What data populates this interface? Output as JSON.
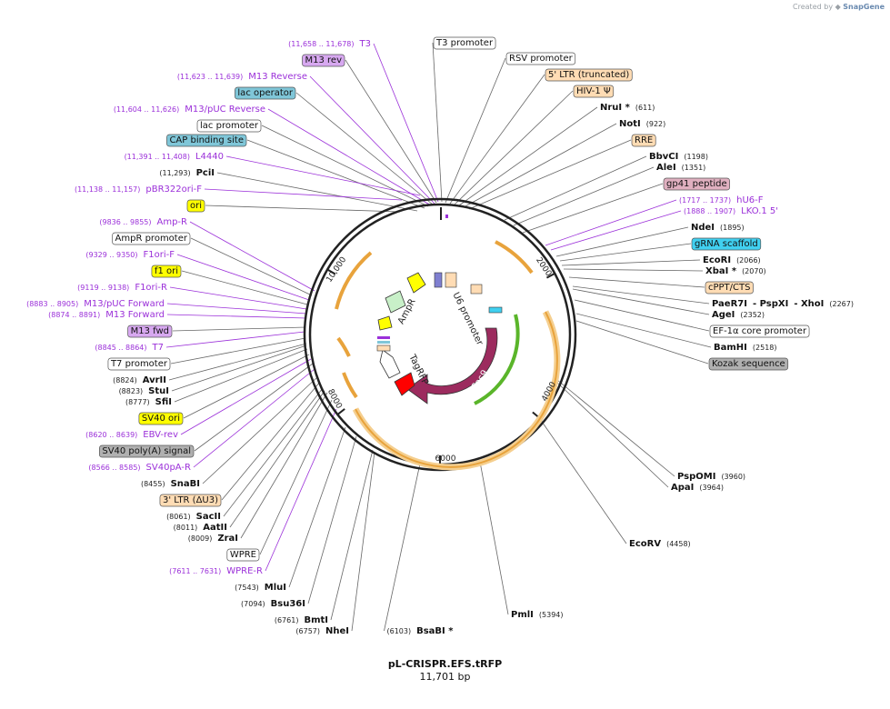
{
  "credit": {
    "prefix": "Created by",
    "brand": "SnapGene"
  },
  "plasmid": {
    "name": "pL-CRISPR.EFS.tRFP",
    "size_label": "11,701 bp"
  },
  "ticks": [
    "10,000",
    "2000",
    "4000",
    "6000",
    "8000"
  ],
  "colors": {
    "primer": "#9b30d9",
    "feature_box_default": "#ffffff",
    "cas9": "#9c2b5e",
    "tagrfp": "#ff0000",
    "ampr": "#ffff00",
    "ori": "#ffff00",
    "ltr": "#ffdcb4",
    "orange_arc": "#e8a33c",
    "green_arc": "#5ab52a"
  },
  "inner_labels": [
    "AmpR",
    "U6 promoter",
    "TagRFP",
    "Cas9"
  ],
  "labels": [
    {
      "kind": "primer",
      "range": "(11,658 .. 11,678)",
      "name": "T3"
    },
    {
      "kind": "box",
      "name": "M13 rev",
      "color": "#d7a8f0"
    },
    {
      "kind": "primer",
      "range": "(11,623 .. 11,639)",
      "name": "M13 Reverse"
    },
    {
      "kind": "box",
      "name": "lac operator",
      "color": "#7fc6d8"
    },
    {
      "kind": "primer",
      "range": "(11,604 .. 11,626)",
      "name": "M13/pUC Reverse"
    },
    {
      "kind": "box",
      "name": "lac promoter",
      "color": "#ffffff"
    },
    {
      "kind": "box",
      "name": "CAP binding site",
      "color": "#7fc6d8"
    },
    {
      "kind": "primer",
      "range": "(11,391 .. 11,408)",
      "name": "L4440"
    },
    {
      "kind": "site",
      "pos": "(11,293)",
      "name": "PciI"
    },
    {
      "kind": "primer",
      "range": "(11,138 .. 11,157)",
      "name": "pBR322ori-F"
    },
    {
      "kind": "box",
      "name": "ori",
      "color": "#ffff00"
    },
    {
      "kind": "primer",
      "range": "(9836 .. 9855)",
      "name": "Amp-R"
    },
    {
      "kind": "box",
      "name": "AmpR promoter",
      "color": "#ffffff"
    },
    {
      "kind": "primer",
      "range": "(9329 .. 9350)",
      "name": "F1ori-F"
    },
    {
      "kind": "box",
      "name": "f1 ori",
      "color": "#ffff00"
    },
    {
      "kind": "primer",
      "range": "(9119 .. 9138)",
      "name": "F1ori-R"
    },
    {
      "kind": "primer",
      "range": "(8883 .. 8905)",
      "name": "M13/pUC Forward"
    },
    {
      "kind": "primer",
      "range": "(8874 .. 8891)",
      "name": "M13 Forward"
    },
    {
      "kind": "box",
      "name": "M13 fwd",
      "color": "#d7a8f0"
    },
    {
      "kind": "primer",
      "range": "(8845 .. 8864)",
      "name": "T7"
    },
    {
      "kind": "box",
      "name": "T7 promoter",
      "color": "#ffffff"
    },
    {
      "kind": "site",
      "pos": "(8824)",
      "name": "AvrII"
    },
    {
      "kind": "site",
      "pos": "(8823)",
      "name": "StuI"
    },
    {
      "kind": "site",
      "pos": "(8777)",
      "name": "SfiI"
    },
    {
      "kind": "box",
      "name": "SV40 ori",
      "color": "#ffff00"
    },
    {
      "kind": "primer",
      "range": "(8620 .. 8639)",
      "name": "EBV-rev"
    },
    {
      "kind": "box",
      "name": "SV40 poly(A) signal",
      "color": "#b0b0b0"
    },
    {
      "kind": "primer",
      "range": "(8566 .. 8585)",
      "name": "SV40pA-R"
    },
    {
      "kind": "site",
      "pos": "(8455)",
      "name": "SnaBI"
    },
    {
      "kind": "box",
      "name": "3' LTR (ΔU3)",
      "color": "#ffdcb4"
    },
    {
      "kind": "site",
      "pos": "(8061)",
      "name": "SacII"
    },
    {
      "kind": "site",
      "pos": "(8011)",
      "name": "AatII"
    },
    {
      "kind": "site",
      "pos": "(8009)",
      "name": "ZraI"
    },
    {
      "kind": "box",
      "name": "WPRE",
      "color": "#ffffff"
    },
    {
      "kind": "primer",
      "range": "(7611 .. 7631)",
      "name": "WPRE-R"
    },
    {
      "kind": "site",
      "pos": "(7543)",
      "name": "MluI"
    },
    {
      "kind": "site",
      "pos": "(7094)",
      "name": "Bsu36I"
    },
    {
      "kind": "site",
      "pos": "(6761)",
      "name": "BmtI"
    },
    {
      "kind": "site",
      "pos": "(6757)",
      "name": "NheI"
    },
    {
      "kind": "site",
      "pos": "(6103)",
      "name": "BsaBI *"
    },
    {
      "kind": "site",
      "pos": "(5394)",
      "name": "PmlI"
    },
    {
      "kind": "site",
      "pos": "(4458)",
      "name": "EcoRV"
    },
    {
      "kind": "site",
      "pos": "(3964)",
      "name": "ApaI"
    },
    {
      "kind": "site",
      "pos": "(3960)",
      "name": "PspOMI"
    },
    {
      "kind": "box",
      "name": "T3 promoter",
      "color": "#ffffff"
    },
    {
      "kind": "box",
      "name": "RSV promoter",
      "color": "#ffffff"
    },
    {
      "kind": "box",
      "name": "5' LTR (truncated)",
      "color": "#ffdcb4"
    },
    {
      "kind": "box",
      "name": "HIV-1 Ψ",
      "color": "#ffdcb4"
    },
    {
      "kind": "site",
      "pos": "(611)",
      "name": "NruI *"
    },
    {
      "kind": "site",
      "pos": "(922)",
      "name": "NotI"
    },
    {
      "kind": "box",
      "name": "RRE",
      "color": "#ffdcb4"
    },
    {
      "kind": "site",
      "pos": "(1198)",
      "name": "BbvCI"
    },
    {
      "kind": "site",
      "pos": "(1351)",
      "name": "AleI"
    },
    {
      "kind": "box",
      "name": "gp41 peptide",
      "color": "#e0b0c0"
    },
    {
      "kind": "primer",
      "range": "(1717 .. 1737)",
      "name": "hU6-F"
    },
    {
      "kind": "primer",
      "range": "(1888 .. 1907)",
      "name": "LKO.1 5'"
    },
    {
      "kind": "site",
      "pos": "(1895)",
      "name": "NdeI"
    },
    {
      "kind": "box",
      "name": "gRNA scaffold",
      "color": "#40d0f0"
    },
    {
      "kind": "site",
      "pos": "(2066)",
      "name": "EcoRI"
    },
    {
      "kind": "site",
      "pos": "(2070)",
      "name": "XbaI *"
    },
    {
      "kind": "box",
      "name": "cPPT/CTS",
      "color": "#ffdcb4"
    },
    {
      "kind": "site3",
      "pos": "(2267)",
      "name": "PaeR7I",
      "name2": "- PspXI",
      "name3": "- XhoI"
    },
    {
      "kind": "site",
      "pos": "(2352)",
      "name": "AgeI"
    },
    {
      "kind": "box",
      "name": "EF-1α core promoter",
      "color": "#ffffff"
    },
    {
      "kind": "site",
      "pos": "(2518)",
      "name": "BamHI"
    },
    {
      "kind": "box",
      "name": "Kozak sequence",
      "color": "#b0b0b0"
    }
  ]
}
